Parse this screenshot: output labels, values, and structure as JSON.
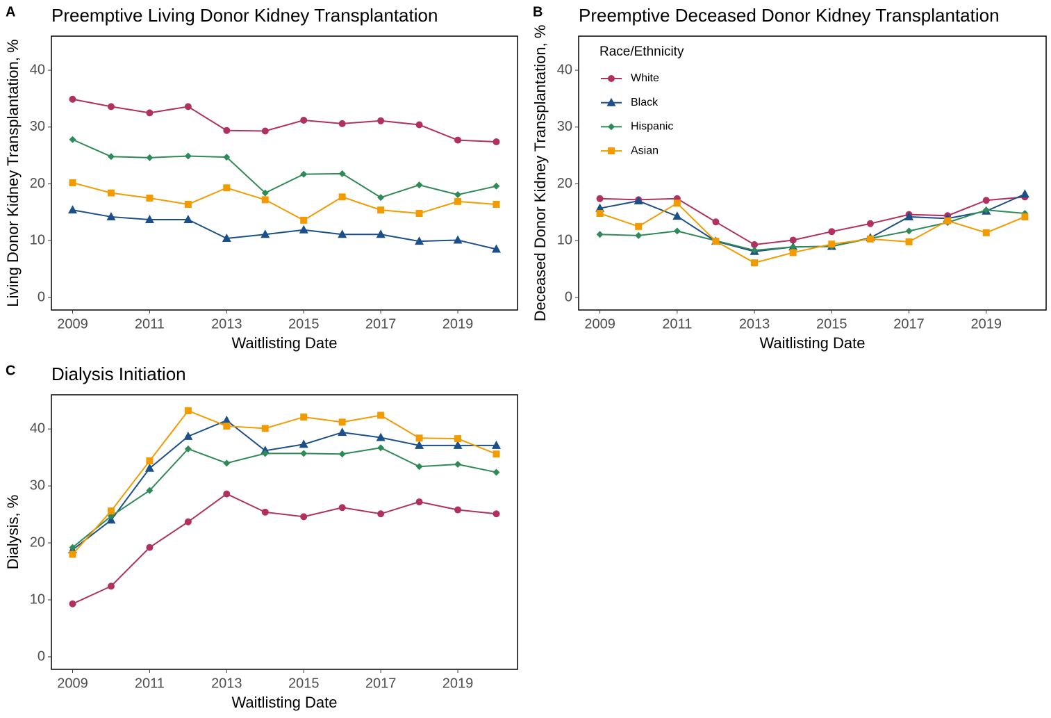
{
  "chart_data": [
    {
      "type": "line",
      "panel_label": "A",
      "title": "Preemptive Living Donor Kidney Transplantation",
      "x_label": "Waitlisting Date",
      "y_label": "Living Donor Kidney Transplantation, %",
      "x": [
        2009,
        2010,
        2011,
        2012,
        2013,
        2014,
        2015,
        2016,
        2017,
        2018,
        2019,
        2020
      ],
      "xlim": [
        2008.45,
        2020.55
      ],
      "ylim": [
        -2.2,
        46
      ],
      "xticks": [
        2009,
        2011,
        2013,
        2015,
        2017,
        2019
      ],
      "yticks": [
        0,
        10,
        20,
        30,
        40
      ],
      "series": [
        {
          "color": "#b03060",
          "marker": "circle",
          "values": [
            34.9,
            33.6,
            32.5,
            33.6,
            29.4,
            29.3,
            31.2,
            30.6,
            31.1,
            30.4,
            27.7,
            27.4
          ]
        },
        {
          "color": "#1b4f8a",
          "marker": "triangle",
          "values": [
            15.4,
            14.2,
            13.7,
            13.7,
            10.4,
            11.1,
            11.9,
            11.1,
            11.1,
            9.9,
            10.1,
            8.5
          ]
        },
        {
          "color": "#2e8b57",
          "marker": "diamond",
          "values": [
            27.8,
            24.8,
            24.6,
            24.9,
            24.7,
            18.4,
            21.7,
            21.8,
            17.6,
            19.8,
            18.1,
            19.6
          ]
        },
        {
          "color": "#f29b00",
          "marker": "square",
          "values": [
            20.2,
            18.4,
            17.5,
            16.4,
            19.3,
            17.2,
            13.6,
            17.7,
            15.4,
            14.8,
            16.9,
            16.4
          ]
        }
      ]
    },
    {
      "type": "line",
      "panel_label": "B",
      "title": "Preemptive Deceased Donor Kidney Transplantation",
      "x_label": "Waitlisting Date",
      "y_label": "Deceased Donor Kidney Transplantation, %",
      "x": [
        2009,
        2010,
        2011,
        2012,
        2013,
        2014,
        2015,
        2016,
        2017,
        2018,
        2019,
        2020
      ],
      "xlim": [
        2008.45,
        2020.55
      ],
      "ylim": [
        -2.2,
        46
      ],
      "xticks": [
        2009,
        2011,
        2013,
        2015,
        2017,
        2019
      ],
      "yticks": [
        0,
        10,
        20,
        30,
        40
      ],
      "legend": {
        "title": "Race/Ethnicity",
        "position": "top-left"
      },
      "series": [
        {
          "name": "White",
          "color": "#b03060",
          "marker": "circle",
          "values": [
            17.4,
            17.2,
            17.4,
            13.3,
            9.3,
            10.1,
            11.6,
            13.0,
            14.6,
            14.4,
            17.1,
            17.7
          ]
        },
        {
          "name": "Black",
          "color": "#1b4f8a",
          "marker": "triangle",
          "values": [
            15.7,
            17.0,
            14.3,
            9.9,
            8.1,
            8.9,
            9.0,
            10.5,
            14.2,
            13.9,
            15.2,
            18.2
          ]
        },
        {
          "name": "Hispanic",
          "color": "#2e8b57",
          "marker": "diamond",
          "values": [
            11.1,
            10.9,
            11.7,
            10.0,
            8.3,
            8.9,
            9.0,
            10.4,
            11.7,
            13.2,
            15.4,
            14.8
          ]
        },
        {
          "name": "Asian",
          "color": "#f29b00",
          "marker": "square",
          "values": [
            14.8,
            12.5,
            16.6,
            9.9,
            6.1,
            7.9,
            9.4,
            10.3,
            9.8,
            13.5,
            11.4,
            14.2
          ]
        }
      ]
    },
    {
      "type": "line",
      "panel_label": "C",
      "title": "Dialysis Initiation",
      "x_label": "Waitlisting Date",
      "y_label": "Dialysis, %",
      "x": [
        2009,
        2010,
        2011,
        2012,
        2013,
        2014,
        2015,
        2016,
        2017,
        2018,
        2019,
        2020
      ],
      "xlim": [
        2008.45,
        2020.55
      ],
      "ylim": [
        -2.2,
        46
      ],
      "xticks": [
        2009,
        2011,
        2013,
        2015,
        2017,
        2019
      ],
      "yticks": [
        0,
        10,
        20,
        30,
        40
      ],
      "series": [
        {
          "color": "#b03060",
          "marker": "circle",
          "values": [
            9.3,
            12.4,
            19.2,
            23.7,
            28.6,
            25.4,
            24.6,
            26.2,
            25.1,
            27.2,
            25.8,
            25.1
          ]
        },
        {
          "color": "#1b4f8a",
          "marker": "triangle",
          "values": [
            18.8,
            24.0,
            33.1,
            38.7,
            41.5,
            36.2,
            37.3,
            39.4,
            38.5,
            37.1,
            37.1,
            37.1
          ]
        },
        {
          "color": "#2e8b57",
          "marker": "diamond",
          "values": [
            19.2,
            24.7,
            29.2,
            36.5,
            34.0,
            35.7,
            35.7,
            35.6,
            36.7,
            33.4,
            33.8,
            32.4
          ]
        },
        {
          "color": "#f29b00",
          "marker": "square",
          "values": [
            18.0,
            25.6,
            34.4,
            43.2,
            40.5,
            40.1,
            42.1,
            41.2,
            42.4,
            38.4,
            38.3,
            35.6
          ]
        }
      ]
    }
  ]
}
